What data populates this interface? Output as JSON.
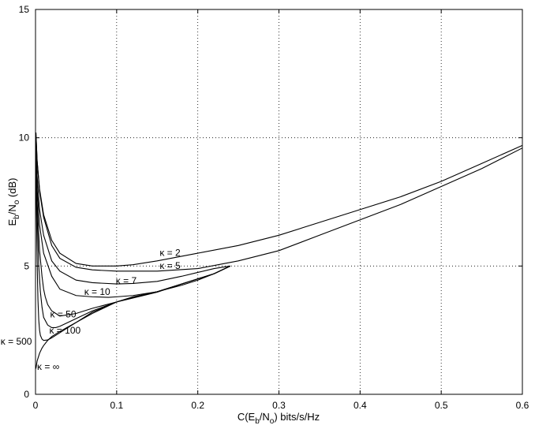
{
  "chart_data": {
    "type": "line",
    "xlabel_parts": {
      "a": "C(E",
      "b": "b",
      "c": "/N",
      "d": "o",
      "e": ") bits/s/Hz"
    },
    "ylabel_parts": {
      "a": "E",
      "b": "b",
      "c": "/N",
      "d": "o",
      "e": " (dB)"
    },
    "xlim": [
      0,
      0.6
    ],
    "ylim": [
      0,
      15
    ],
    "xticks": [
      0,
      0.1,
      0.2,
      0.3,
      0.4,
      0.5,
      0.6
    ],
    "xtick_labels": [
      "0",
      "0.1",
      "0.2",
      "0.3",
      "0.4",
      "0.5",
      "0.6"
    ],
    "yticks": [
      0,
      5,
      10,
      15
    ],
    "ytick_labels": [
      "0",
      "5",
      "10",
      "15"
    ],
    "grid": true,
    "grid_style": "dotted",
    "line_color": "#000000",
    "series": [
      {
        "name": "κ = 2",
        "x": [
          0.0005,
          0.002,
          0.005,
          0.01,
          0.02,
          0.03,
          0.05,
          0.07,
          0.1,
          0.12,
          0.15,
          0.2,
          0.25,
          0.3,
          0.35,
          0.4,
          0.45,
          0.5,
          0.55,
          0.6
        ],
        "y": [
          10.2,
          9.1,
          8.0,
          7.0,
          6.0,
          5.5,
          5.1,
          5.0,
          5.0,
          5.05,
          5.2,
          5.5,
          5.8,
          6.2,
          6.7,
          7.2,
          7.7,
          8.3,
          9.0,
          9.7
        ]
      },
      {
        "name": "κ = 5",
        "x": [
          0.0005,
          0.002,
          0.005,
          0.01,
          0.02,
          0.03,
          0.05,
          0.07,
          0.1,
          0.12,
          0.15,
          0.2,
          0.25,
          0.3,
          0.35,
          0.4,
          0.45,
          0.5,
          0.55,
          0.6
        ],
        "y": [
          10.2,
          9.1,
          7.9,
          6.9,
          5.8,
          5.3,
          4.95,
          4.85,
          4.8,
          4.8,
          4.8,
          4.9,
          5.2,
          5.6,
          6.2,
          6.8,
          7.4,
          8.1,
          8.8,
          9.6
        ]
      },
      {
        "name": "κ = 7",
        "x": [
          0.0005,
          0.002,
          0.005,
          0.01,
          0.02,
          0.03,
          0.05,
          0.07,
          0.1,
          0.12,
          0.15,
          0.18,
          0.2,
          0.22,
          0.24
        ],
        "y": [
          10.0,
          8.5,
          7.2,
          6.2,
          5.2,
          4.8,
          4.45,
          4.35,
          4.3,
          4.32,
          4.4,
          4.6,
          4.75,
          4.9,
          5.0
        ]
      },
      {
        "name": "κ = 10",
        "x": [
          0.0005,
          0.002,
          0.005,
          0.01,
          0.02,
          0.03,
          0.05,
          0.07,
          0.09,
          0.1,
          0.12,
          0.15,
          0.18,
          0.2,
          0.22,
          0.24
        ],
        "y": [
          10.0,
          8.0,
          6.6,
          5.5,
          4.6,
          4.1,
          3.85,
          3.8,
          3.78,
          3.8,
          3.85,
          4.0,
          4.25,
          4.45,
          4.7,
          5.0
        ]
      },
      {
        "name": "κ = 50",
        "x": [
          0.0005,
          0.002,
          0.005,
          0.008,
          0.01,
          0.012,
          0.015,
          0.02,
          0.03,
          0.05,
          0.07,
          0.1,
          0.12,
          0.15,
          0.18,
          0.2,
          0.22,
          0.24
        ],
        "y": [
          9.8,
          7.5,
          5.6,
          4.6,
          4.1,
          3.8,
          3.5,
          3.25,
          3.05,
          3.15,
          3.35,
          3.6,
          3.75,
          3.98,
          4.3,
          4.5,
          4.7,
          5.0
        ]
      },
      {
        "name": "κ = 100",
        "x": [
          0.0005,
          0.002,
          0.004,
          0.006,
          0.008,
          0.01,
          0.015,
          0.02,
          0.025,
          0.03,
          0.04,
          0.05,
          0.07,
          0.1,
          0.12,
          0.15,
          0.18,
          0.2,
          0.22,
          0.24
        ],
        "y": [
          9.8,
          7.0,
          5.0,
          4.0,
          3.4,
          3.0,
          2.7,
          2.6,
          2.6,
          2.65,
          2.8,
          2.95,
          3.25,
          3.6,
          3.78,
          4.0,
          4.3,
          4.5,
          4.7,
          5.0
        ]
      },
      {
        "name": "κ = 500",
        "x": [
          0.0005,
          0.001,
          0.002,
          0.003,
          0.004,
          0.005,
          0.006,
          0.008,
          0.01,
          0.015,
          0.02,
          0.03,
          0.05,
          0.07,
          0.1,
          0.12,
          0.15,
          0.18,
          0.2,
          0.22,
          0.24
        ],
        "y": [
          9.5,
          7.5,
          5.2,
          3.7,
          2.9,
          2.5,
          2.3,
          2.15,
          2.1,
          2.12,
          2.2,
          2.4,
          2.8,
          3.2,
          3.6,
          3.8,
          4.0,
          4.3,
          4.5,
          4.7,
          5.0
        ]
      },
      {
        "name": "κ = ∞",
        "x": [
          0.0005,
          0.001,
          0.002,
          0.003,
          0.005,
          0.008,
          0.01,
          0.015,
          0.02,
          0.03,
          0.05,
          0.07,
          0.1,
          0.12,
          0.15,
          0.18,
          0.2,
          0.22,
          0.24
        ],
        "y": [
          1.0,
          1.1,
          1.3,
          1.4,
          1.6,
          1.8,
          1.9,
          2.1,
          2.25,
          2.45,
          2.8,
          3.15,
          3.6,
          3.78,
          4.0,
          4.3,
          4.5,
          4.7,
          5.0
        ]
      }
    ],
    "annotations": [
      {
        "text": "κ = 2",
        "x": 0.153,
        "y": 5.4
      },
      {
        "text": "κ = 5",
        "x": 0.153,
        "y": 4.88
      },
      {
        "text": "κ = 7",
        "x": 0.099,
        "y": 4.3
      },
      {
        "text": "κ = 10",
        "x": 0.06,
        "y": 3.87
      },
      {
        "text": "κ = 50",
        "x": 0.018,
        "y": 3.0
      },
      {
        "text": "κ = 100",
        "x": 0.017,
        "y": 2.37
      },
      {
        "text": "κ = 500",
        "x": -0.043,
        "y": 1.94
      },
      {
        "text": "κ = ∞",
        "x": 0.002,
        "y": 0.95
      }
    ]
  }
}
